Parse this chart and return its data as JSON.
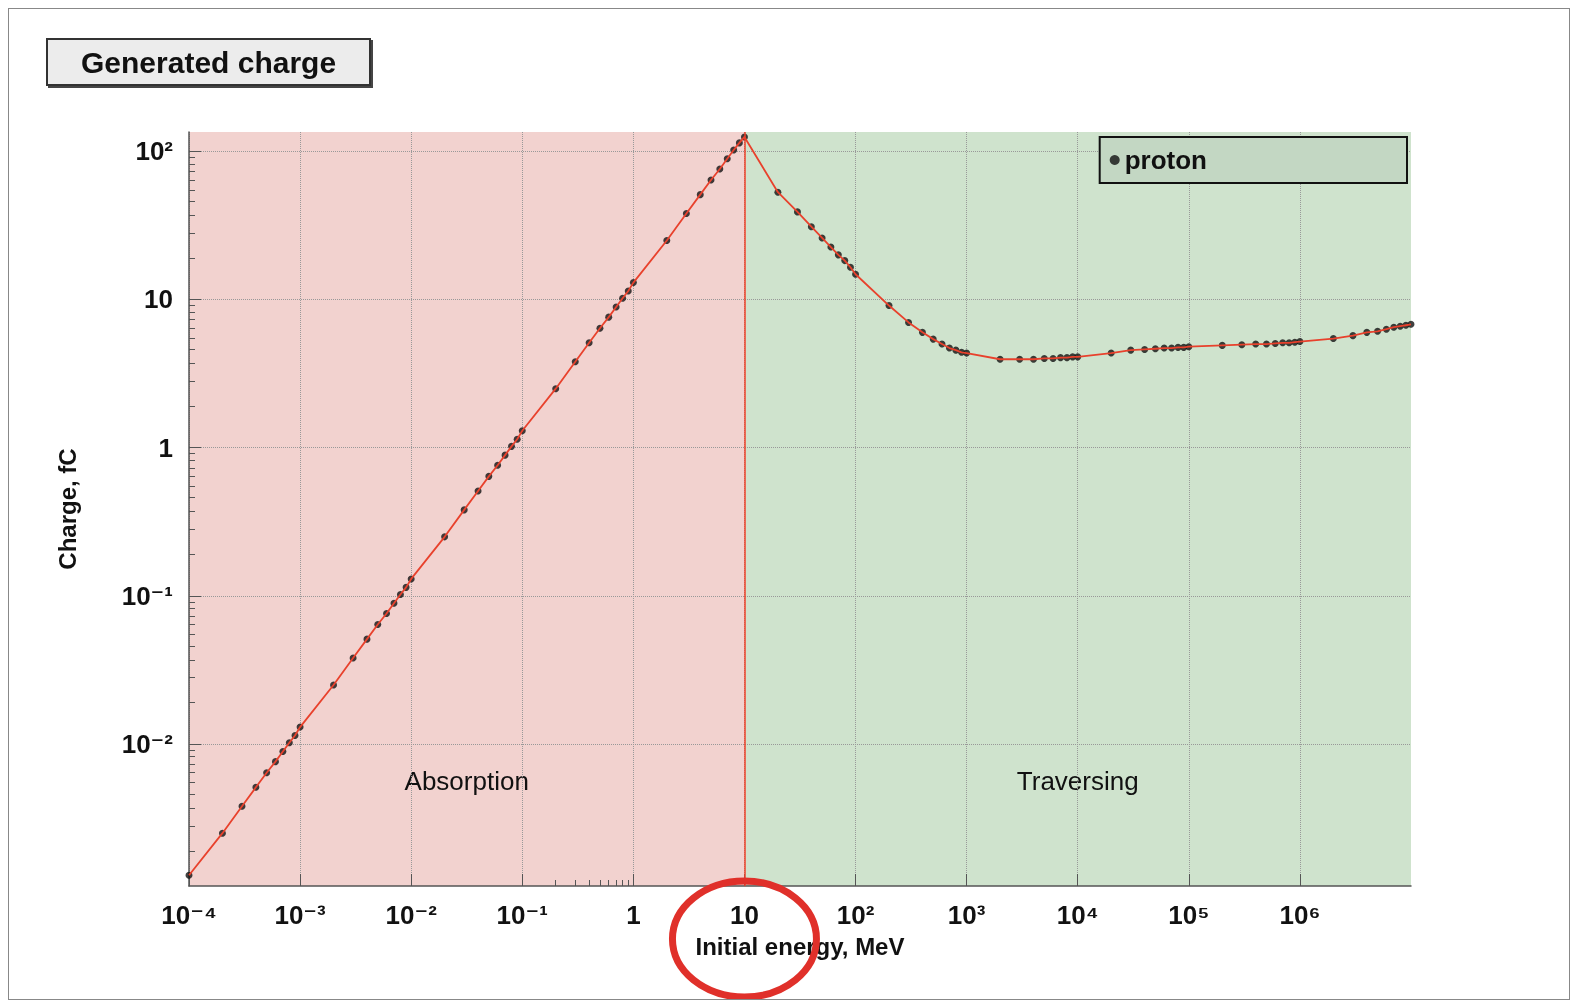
{
  "chart_data": {
    "type": "line",
    "title": "Generated charge",
    "xlabel": "Initial energy, MeV",
    "ylabel": "Charge, fC",
    "log": "xy",
    "grid": true,
    "legend": "top right",
    "xlim": [
      0.0001,
      10000000
    ],
    "ylim": [
      0.0011,
      135
    ],
    "xticks": [
      {
        "value": 0.0001,
        "label": "10⁻⁴"
      },
      {
        "value": 0.001,
        "label": "10⁻³"
      },
      {
        "value": 0.01,
        "label": "10⁻²"
      },
      {
        "value": 0.1,
        "label": "10⁻¹"
      },
      1,
      10,
      {
        "value": 100,
        "label": "10²"
      },
      {
        "value": 1000,
        "label": "10³"
      },
      {
        "value": 10000,
        "label": "10⁴"
      },
      {
        "value": 100000,
        "label": "10⁵"
      },
      {
        "value": 1000000,
        "label": "10⁶"
      }
    ],
    "yticks": [
      {
        "value": 0.01,
        "label": "10⁻²"
      },
      {
        "value": 0.1,
        "label": "10⁻¹"
      },
      1,
      10,
      {
        "value": 100,
        "label": "10²"
      }
    ],
    "bands": [
      {
        "axis": "x",
        "from": 0.0001,
        "to": 10,
        "label": "Absorption",
        "color": "#f2d2cf"
      },
      {
        "axis": "x",
        "from": 10,
        "to": 10000000,
        "label": "Traversing",
        "color": "#cfe3cd"
      }
    ],
    "ref_lines": [
      {
        "axis": "x",
        "value": 10,
        "color": "#f0402a"
      }
    ],
    "series": [
      {
        "type": "line",
        "color": "#e8412c",
        "marker": "none",
        "x": [
          0.0001,
          0.0002,
          0.0003,
          0.0004,
          0.0005,
          0.0006,
          0.0007,
          0.0008,
          0.0009,
          0.001,
          0.002,
          0.003,
          0.004,
          0.005,
          0.006,
          0.007,
          0.008,
          0.009,
          0.01,
          0.02,
          0.03,
          0.04,
          0.05,
          0.06,
          0.07,
          0.08,
          0.09,
          0.1,
          0.2,
          0.3,
          0.4,
          0.5,
          0.6,
          0.7,
          0.8,
          0.9,
          1,
          2,
          3,
          4,
          5,
          6,
          7,
          8,
          9,
          10,
          20,
          30,
          40,
          50,
          60,
          70,
          80,
          90,
          100,
          200,
          300,
          400,
          500,
          600,
          700,
          800,
          900,
          1000,
          2000,
          3000,
          4000,
          5000,
          6000,
          7000,
          8000,
          9000,
          10000,
          20000,
          30000,
          40000,
          50000,
          60000,
          70000,
          80000,
          90000,
          100000,
          200000,
          300000,
          400000,
          500000,
          600000,
          700000,
          800000,
          900000,
          1000000,
          2000000,
          3000000,
          4000000,
          5000000,
          6000000,
          7000000,
          8000000,
          9000000,
          10000000
        ],
        "values": [
          0.0013,
          0.0025,
          0.0038,
          0.0051,
          0.0064,
          0.0076,
          0.0089,
          0.0102,
          0.0114,
          0.013,
          0.025,
          0.038,
          0.051,
          0.064,
          0.076,
          0.089,
          0.102,
          0.114,
          0.13,
          0.25,
          0.38,
          0.51,
          0.64,
          0.76,
          0.89,
          1.02,
          1.14,
          1.3,
          2.5,
          3.8,
          5.1,
          6.4,
          7.6,
          8.9,
          10.2,
          11.4,
          13,
          25,
          38,
          51,
          64,
          76,
          89,
          102,
          114,
          125,
          53,
          39,
          31,
          26,
          22.6,
          20,
          18.3,
          16.5,
          14.8,
          9.1,
          7.0,
          6.0,
          5.4,
          5.0,
          4.7,
          4.55,
          4.4,
          4.35,
          3.95,
          3.95,
          3.95,
          4.0,
          4.0,
          4.05,
          4.05,
          4.1,
          4.1,
          4.35,
          4.55,
          4.6,
          4.65,
          4.7,
          4.7,
          4.75,
          4.75,
          4.8,
          4.9,
          4.95,
          5.0,
          5.0,
          5.05,
          5.1,
          5.1,
          5.15,
          5.2,
          5.45,
          5.7,
          6.0,
          6.1,
          6.3,
          6.5,
          6.6,
          6.7,
          6.8
        ]
      },
      {
        "type": "scatter",
        "name": "proton",
        "color": "#111111",
        "marker": "circle",
        "x": [
          0.0001,
          0.0002,
          0.0003,
          0.0004,
          0.0005,
          0.0006,
          0.0007,
          0.0008,
          0.0009,
          0.001,
          0.002,
          0.003,
          0.004,
          0.005,
          0.006,
          0.007,
          0.008,
          0.009,
          0.01,
          0.02,
          0.03,
          0.04,
          0.05,
          0.06,
          0.07,
          0.08,
          0.09,
          0.1,
          0.2,
          0.3,
          0.4,
          0.5,
          0.6,
          0.7,
          0.8,
          0.9,
          1,
          2,
          3,
          4,
          5,
          6,
          7,
          8,
          9,
          10,
          20,
          30,
          40,
          50,
          60,
          70,
          80,
          90,
          100,
          200,
          300,
          400,
          500,
          600,
          700,
          800,
          900,
          1000,
          2000,
          3000,
          4000,
          5000,
          6000,
          7000,
          8000,
          9000,
          10000,
          20000,
          30000,
          40000,
          50000,
          60000,
          70000,
          80000,
          90000,
          100000,
          200000,
          300000,
          400000,
          500000,
          600000,
          700000,
          800000,
          900000,
          1000000,
          2000000,
          3000000,
          4000000,
          5000000,
          6000000,
          7000000,
          8000000,
          9000000,
          10000000
        ],
        "values": [
          0.0013,
          0.0025,
          0.0038,
          0.0051,
          0.0064,
          0.0076,
          0.0089,
          0.0102,
          0.0114,
          0.013,
          0.025,
          0.038,
          0.051,
          0.064,
          0.076,
          0.089,
          0.102,
          0.114,
          0.13,
          0.25,
          0.38,
          0.51,
          0.64,
          0.76,
          0.89,
          1.02,
          1.14,
          1.3,
          2.5,
          3.8,
          5.1,
          6.4,
          7.6,
          8.9,
          10.2,
          11.4,
          13,
          25,
          38,
          51,
          64,
          76,
          89,
          102,
          114,
          125,
          53,
          39,
          31,
          26,
          22.6,
          20,
          18.3,
          16.5,
          14.8,
          9.1,
          7.0,
          6.0,
          5.4,
          5.0,
          4.7,
          4.55,
          4.4,
          4.35,
          3.95,
          3.95,
          3.95,
          4.0,
          4.0,
          4.05,
          4.05,
          4.1,
          4.1,
          4.35,
          4.55,
          4.6,
          4.65,
          4.7,
          4.7,
          4.75,
          4.75,
          4.8,
          4.9,
          4.95,
          5.0,
          5.0,
          5.05,
          5.1,
          5.1,
          5.15,
          5.2,
          5.45,
          5.7,
          6.0,
          6.1,
          6.3,
          6.5,
          6.6,
          6.7,
          6.8
        ]
      }
    ]
  }
}
